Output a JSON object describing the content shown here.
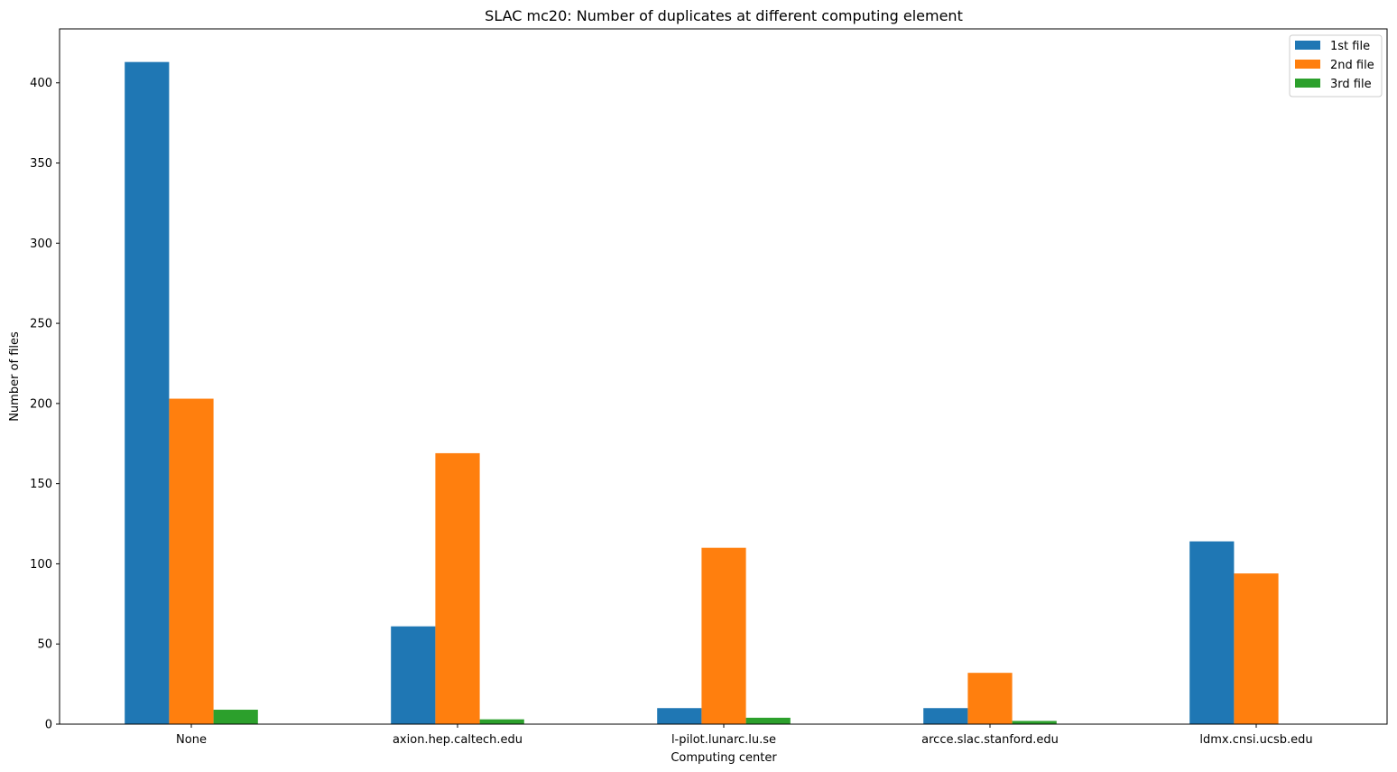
{
  "chart_data": {
    "type": "bar",
    "title": "SLAC mc20: Number of duplicates at different computing element",
    "xlabel": "Computing center",
    "ylabel": "Number of files",
    "categories": [
      "None",
      "axion.hep.caltech.edu",
      "l-pilot.lunarc.lu.se",
      "arcce.slac.stanford.edu",
      "ldmx.cnsi.ucsb.edu"
    ],
    "series": [
      {
        "name": "1st file",
        "color": "#1f77b4",
        "values": [
          413,
          61,
          10,
          10,
          114
        ]
      },
      {
        "name": "2nd file",
        "color": "#ff7f0e",
        "values": [
          203,
          169,
          110,
          32,
          94
        ]
      },
      {
        "name": "3rd file",
        "color": "#2ca02c",
        "values": [
          9,
          3,
          4,
          2,
          0
        ]
      }
    ],
    "ylim": [
      0,
      433.65
    ],
    "yticks": [
      0,
      50,
      100,
      150,
      200,
      250,
      300,
      350,
      400
    ],
    "legend_position": "top-right",
    "grid": false
  }
}
